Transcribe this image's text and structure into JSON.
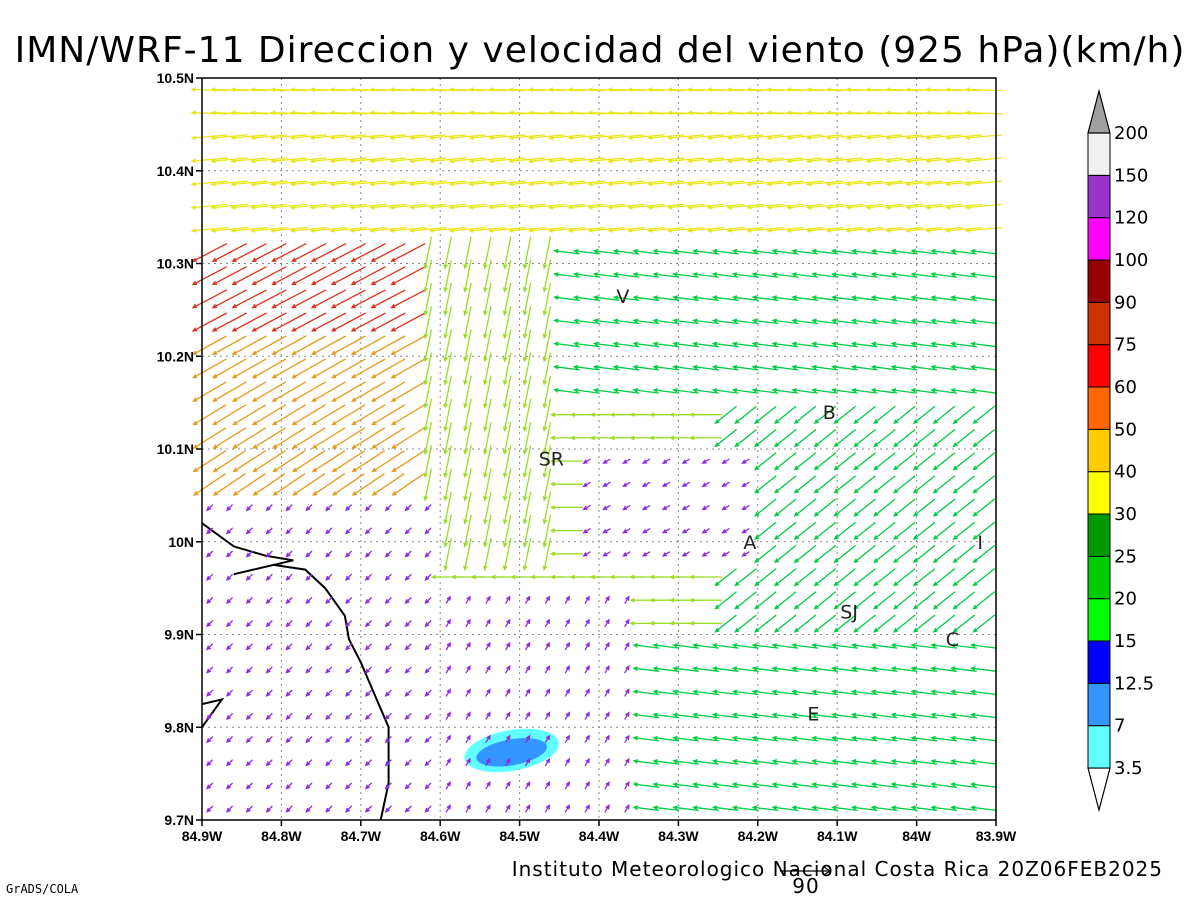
{
  "title": "IMN/WRF-11 Direccion y velocidad del viento (925 hPa)(km/h)",
  "footer": "Instituto Meteorologico Nacional Costa Rica 20Z06FEB2025",
  "grads_credit": "GrADS/COLA",
  "reference_vector": {
    "label": "90",
    "speed": 90
  },
  "map": {
    "lon_range": [
      -84.9,
      -83.9
    ],
    "lat_range": [
      9.7,
      10.5
    ],
    "x_ticks": [
      {
        "value": -84.9,
        "label": "84.9W"
      },
      {
        "value": -84.8,
        "label": "84.8W"
      },
      {
        "value": -84.7,
        "label": "84.7W"
      },
      {
        "value": -84.6,
        "label": "84.6W"
      },
      {
        "value": -84.5,
        "label": "84.5W"
      },
      {
        "value": -84.4,
        "label": "84.4W"
      },
      {
        "value": -84.3,
        "label": "84.3W"
      },
      {
        "value": -84.2,
        "label": "84.2W"
      },
      {
        "value": -84.1,
        "label": "84.1W"
      },
      {
        "value": -84.0,
        "label": "84W"
      },
      {
        "value": -83.9,
        "label": "83.9W"
      }
    ],
    "y_ticks": [
      {
        "value": 9.7,
        "label": "9.7N"
      },
      {
        "value": 9.8,
        "label": "9.8N"
      },
      {
        "value": 9.9,
        "label": "9.9N"
      },
      {
        "value": 10.0,
        "label": "10N"
      },
      {
        "value": 10.1,
        "label": "10.1N"
      },
      {
        "value": 10.2,
        "label": "10.2N"
      },
      {
        "value": 10.3,
        "label": "10.3N"
      },
      {
        "value": 10.4,
        "label": "10.4N"
      },
      {
        "value": 10.5,
        "label": "10.5N"
      }
    ],
    "grid": true,
    "cities": [
      {
        "label": "V",
        "lon": -84.37,
        "lat": 10.265
      },
      {
        "label": "B",
        "lon": -84.11,
        "lat": 10.14
      },
      {
        "label": "SR",
        "lon": -84.46,
        "lat": 10.09
      },
      {
        "label": "A",
        "lon": -84.21,
        "lat": 10.0
      },
      {
        "label": "I",
        "lon": -83.92,
        "lat": 10.0
      },
      {
        "label": "SJ",
        "lon": -84.085,
        "lat": 9.925
      },
      {
        "label": "C",
        "lon": -83.955,
        "lat": 9.895
      },
      {
        "label": "E",
        "lon": -84.13,
        "lat": 9.815
      }
    ],
    "coastline": [
      [
        [
          -84.9,
          10.02
        ],
        [
          -84.86,
          9.995
        ],
        [
          -84.82,
          9.985
        ],
        [
          -84.785,
          9.98
        ],
        [
          -84.86,
          9.965
        ],
        [
          -84.81,
          9.975
        ],
        [
          -84.77,
          9.97
        ],
        [
          -84.745,
          9.95
        ],
        [
          -84.72,
          9.92
        ],
        [
          -84.715,
          9.895
        ],
        [
          -84.7,
          9.87
        ],
        [
          -84.685,
          9.84
        ],
        [
          -84.665,
          9.8
        ],
        [
          -84.665,
          9.74
        ],
        [
          -84.675,
          9.7
        ]
      ],
      [
        [
          -84.9,
          9.825
        ],
        [
          -84.875,
          9.83
        ],
        [
          -84.9,
          9.8
        ]
      ]
    ],
    "speed_contours": [
      {
        "level": 3.5,
        "color": "#62ffff",
        "lon": -84.51,
        "lat": 9.775,
        "rx_deg": 0.06,
        "ry_deg": 0.022
      },
      {
        "level": 7,
        "color": "#3396ff",
        "lon": -84.51,
        "lat": 9.773,
        "rx_deg": 0.045,
        "ry_deg": 0.014
      }
    ]
  },
  "colorbar": {
    "levels": [
      "3.5",
      "7",
      "12.5",
      "15",
      "20",
      "25",
      "30",
      "40",
      "50",
      "60",
      "75",
      "90",
      "100",
      "120",
      "150",
      "200"
    ],
    "colors": [
      "#62ffff",
      "#3396ff",
      "#0000ff",
      "#00ff00",
      "#00cc00",
      "#009900",
      "#ffff00",
      "#ffcc00",
      "#ff6600",
      "#ff0000",
      "#cc3300",
      "#990000",
      "#ff00ff",
      "#9933cc",
      "#f0f0f0",
      "#ffffff",
      "#a0a0a0"
    ]
  },
  "wind_field": {
    "note_units": "km/h",
    "speed_class_colors": {
      "calm": "#8a2be2",
      "light": "#1e6cff",
      "moderate": "#17c6c6",
      "fresh": "#00cc44",
      "strong": "#99dd22",
      "stronger": "#e6e619",
      "gale": "#e69a19",
      "storm": "#e0301a"
    }
  }
}
